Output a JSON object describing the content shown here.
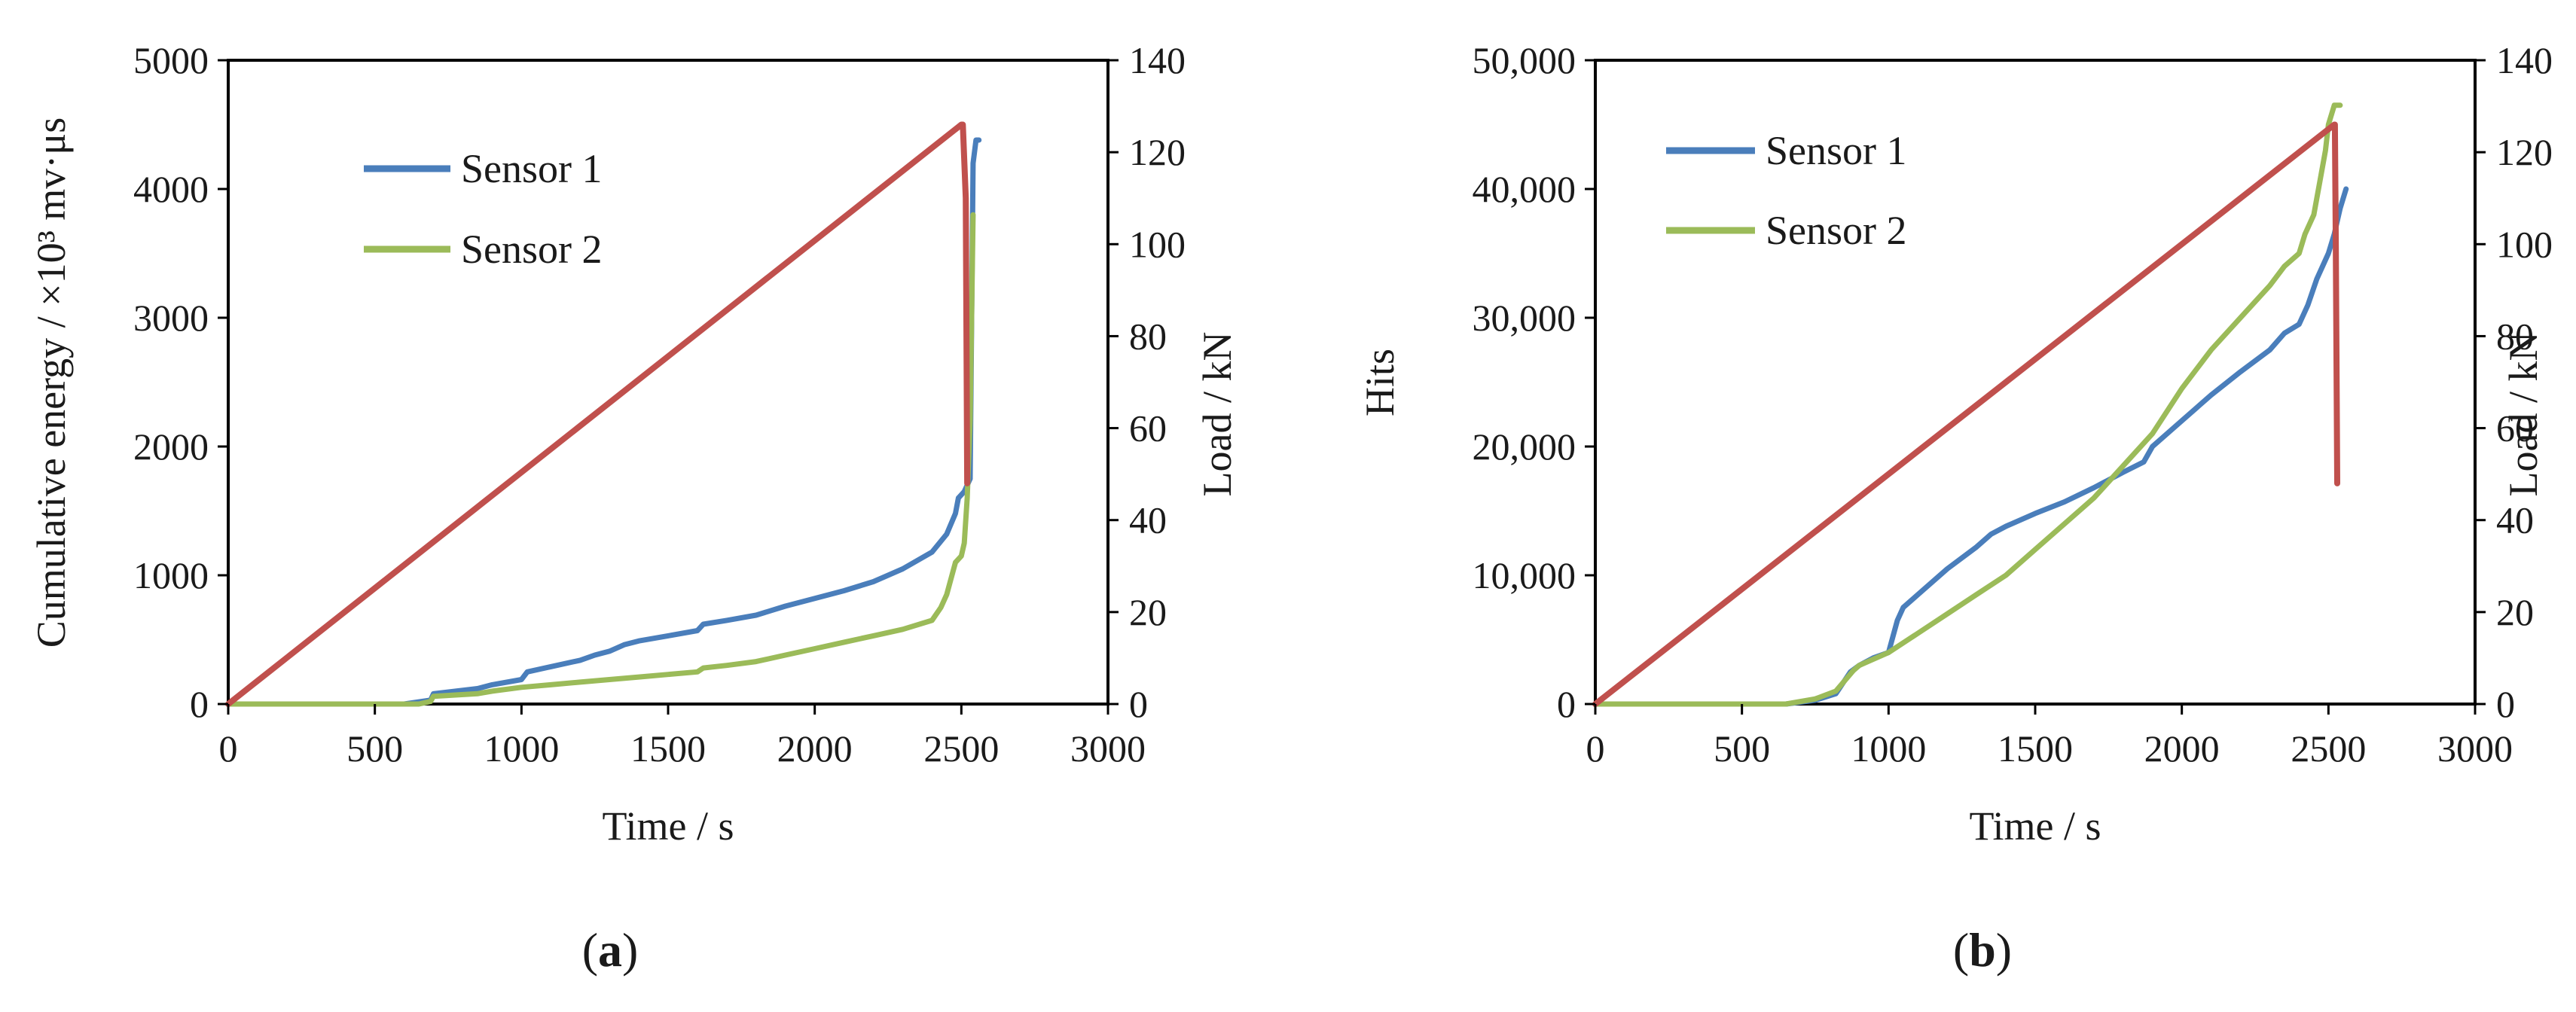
{
  "chart_data": [
    {
      "type": "line",
      "panel_label": "a",
      "xlabel": "Time / s",
      "ylabel": "Cumulative  energy / ×10³ mv·μs",
      "y2label": "Load / kN",
      "xlim": [
        0,
        3000
      ],
      "ylim": [
        0,
        5000
      ],
      "y2lim": [
        0,
        140
      ],
      "x_ticks": [
        0,
        500,
        1000,
        1500,
        2000,
        2500,
        3000
      ],
      "y_ticks": [
        0,
        1000,
        2000,
        3000,
        4000,
        5000
      ],
      "y2_ticks": [
        0,
        20,
        40,
        60,
        80,
        100,
        120,
        140
      ],
      "x_tick_labels": [
        "0",
        "500",
        "1000",
        "1500",
        "2000",
        "2500",
        "3000"
      ],
      "y_tick_labels": [
        "0",
        "1000",
        "2000",
        "3000",
        "4000",
        "5000"
      ],
      "y2_tick_labels": [
        "0",
        "20",
        "40",
        "60",
        "80",
        "100",
        "120",
        "140"
      ],
      "legend": [
        "Sensor 1",
        "Sensor 2"
      ],
      "legend_position": "top-left",
      "series": [
        {
          "name": "Sensor 1",
          "axis": "left",
          "color": "#4a7ebb",
          "x": [
            0,
            600,
            690,
            700,
            850,
            900,
            1000,
            1020,
            1100,
            1200,
            1250,
            1300,
            1350,
            1400,
            1500,
            1600,
            1620,
            1700,
            1800,
            1900,
            2000,
            2100,
            2200,
            2300,
            2400,
            2450,
            2480,
            2490,
            2510,
            2520,
            2530,
            2540,
            2550,
            2560
          ],
          "values": [
            0,
            0,
            30,
            80,
            120,
            150,
            190,
            250,
            290,
            340,
            380,
            410,
            460,
            490,
            530,
            570,
            620,
            650,
            690,
            760,
            820,
            880,
            950,
            1050,
            1180,
            1320,
            1480,
            1600,
            1650,
            1700,
            1750,
            4200,
            4380,
            4380
          ]
        },
        {
          "name": "Sensor 2",
          "axis": "left",
          "color": "#9bbb59",
          "x": [
            0,
            650,
            690,
            700,
            850,
            900,
            1000,
            1100,
            1200,
            1300,
            1400,
            1500,
            1600,
            1620,
            1700,
            1800,
            1900,
            2000,
            2100,
            2200,
            2300,
            2400,
            2430,
            2450,
            2480,
            2500,
            2510,
            2520,
            2530,
            2540
          ],
          "values": [
            0,
            0,
            20,
            60,
            80,
            100,
            130,
            150,
            170,
            190,
            210,
            230,
            250,
            280,
            300,
            330,
            380,
            430,
            480,
            530,
            580,
            650,
            750,
            850,
            1100,
            1150,
            1250,
            1600,
            2200,
            3800
          ]
        },
        {
          "name": "Load",
          "axis": "right",
          "color": "#c0504d",
          "x": [
            0,
            2500,
            2505,
            2515,
            2520
          ],
          "values": [
            0,
            126,
            126,
            110,
            48
          ]
        }
      ]
    },
    {
      "type": "line",
      "panel_label": "b",
      "xlabel": "Time / s",
      "ylabel": "Hits",
      "y2label": "Load / kN",
      "xlim": [
        0,
        3000
      ],
      "ylim": [
        0,
        50000
      ],
      "y2lim": [
        0,
        140
      ],
      "x_ticks": [
        0,
        500,
        1000,
        1500,
        2000,
        2500,
        3000
      ],
      "y_ticks": [
        0,
        10000,
        20000,
        30000,
        40000,
        50000
      ],
      "y2_ticks": [
        0,
        20,
        40,
        60,
        80,
        100,
        120,
        140
      ],
      "x_tick_labels": [
        "0",
        "500",
        "1000",
        "1500",
        "2000",
        "2500",
        "3000"
      ],
      "y_tick_labels": [
        "0",
        "10,000",
        "20,000",
        "30,000",
        "40,000",
        "50,000"
      ],
      "y2_tick_labels": [
        "0",
        "20",
        "40",
        "60",
        "80",
        "100",
        "120",
        "140"
      ],
      "legend": [
        "Sensor 1",
        "Sensor 2"
      ],
      "legend_position": "top-left",
      "series": [
        {
          "name": "Sensor 1",
          "axis": "left",
          "color": "#4a7ebb",
          "x": [
            0,
            650,
            750,
            820,
            870,
            900,
            950,
            1000,
            1030,
            1050,
            1100,
            1200,
            1300,
            1350,
            1400,
            1500,
            1600,
            1700,
            1800,
            1870,
            1900,
            2000,
            2050,
            2100,
            2200,
            2300,
            2350,
            2400,
            2430,
            2460,
            2500,
            2520,
            2540,
            2560
          ],
          "values": [
            0,
            0,
            300,
            800,
            2500,
            3000,
            3600,
            4000,
            6500,
            7500,
            8500,
            10500,
            12200,
            13200,
            13800,
            14800,
            15700,
            16800,
            18000,
            18800,
            20000,
            22000,
            23000,
            24000,
            25800,
            27500,
            28800,
            29500,
            31000,
            33000,
            35000,
            36500,
            38500,
            40000
          ]
        },
        {
          "name": "Sensor 2",
          "axis": "left",
          "color": "#9bbb59",
          "x": [
            0,
            650,
            750,
            820,
            850,
            880,
            900,
            1000,
            1100,
            1200,
            1300,
            1400,
            1500,
            1600,
            1700,
            1800,
            1900,
            2000,
            2100,
            2200,
            2300,
            2350,
            2400,
            2420,
            2450,
            2470,
            2490,
            2500,
            2520,
            2540
          ],
          "values": [
            0,
            0,
            400,
            1000,
            1800,
            2600,
            3000,
            4000,
            5500,
            7000,
            8500,
            10000,
            12000,
            14000,
            16000,
            18500,
            21000,
            24500,
            27500,
            30000,
            32500,
            34000,
            35000,
            36500,
            38000,
            40500,
            43000,
            45000,
            46500,
            46500
          ]
        },
        {
          "name": "Load",
          "axis": "right",
          "color": "#c0504d",
          "x": [
            0,
            2520,
            2522,
            2525,
            2530
          ],
          "values": [
            0,
            126,
            126,
            100,
            48
          ]
        }
      ]
    }
  ]
}
